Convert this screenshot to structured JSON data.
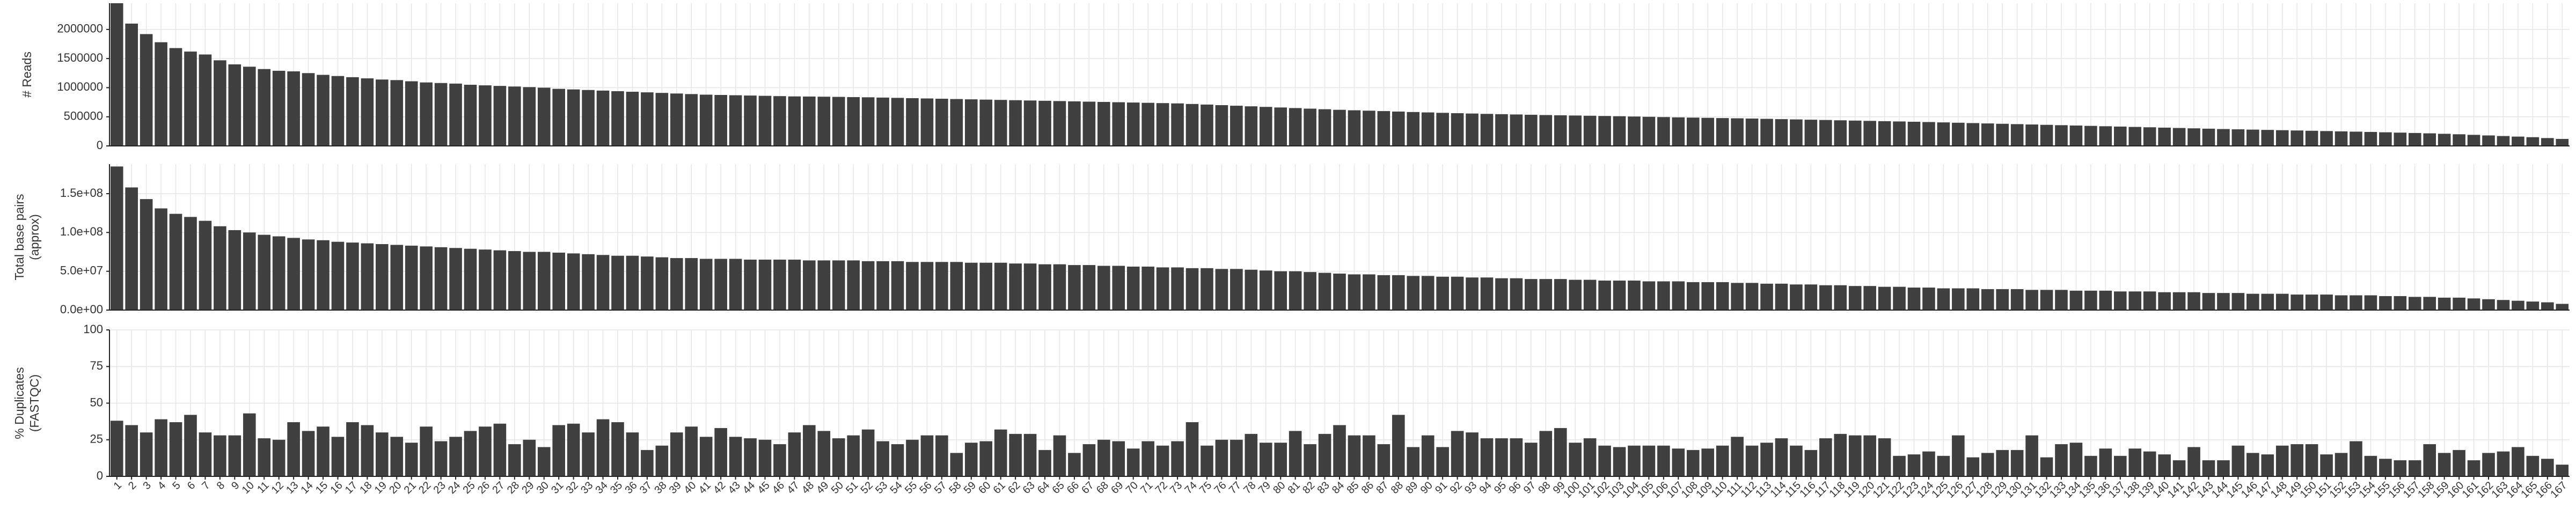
{
  "chart_data": [
    {
      "type": "bar",
      "y_label": [
        "# Reads"
      ],
      "color": "#404040",
      "grid": true,
      "ylim": [
        0,
        2450000
      ],
      "yticks": [
        0,
        500000,
        1000000,
        1500000,
        2000000
      ],
      "values": [
        2450000,
        2100000,
        1920000,
        1780000,
        1680000,
        1620000,
        1570000,
        1470000,
        1400000,
        1360000,
        1320000,
        1290000,
        1280000,
        1250000,
        1220000,
        1200000,
        1180000,
        1160000,
        1140000,
        1130000,
        1110000,
        1090000,
        1080000,
        1070000,
        1050000,
        1040000,
        1030000,
        1020000,
        1010000,
        1000000,
        980000,
        970000,
        960000,
        950000,
        940000,
        930000,
        920000,
        910000,
        900000,
        890000,
        880000,
        875000,
        870000,
        865000,
        860000,
        855000,
        850000,
        848000,
        845000,
        842000,
        838000,
        835000,
        830000,
        825000,
        820000,
        815000,
        810000,
        805000,
        800000,
        795000,
        790000,
        785000,
        780000,
        775000,
        770000,
        765000,
        760000,
        755000,
        750000,
        745000,
        740000,
        735000,
        730000,
        720000,
        710000,
        700000,
        690000,
        680000,
        670000,
        660000,
        650000,
        640000,
        630000,
        620000,
        612000,
        605000,
        598000,
        590000,
        582000,
        575000,
        568000,
        562000,
        556000,
        550000,
        545000,
        540000,
        535000,
        530000,
        526000,
        522000,
        518000,
        514000,
        510000,
        505000,
        500000,
        495000,
        490000,
        486000,
        482000,
        478000,
        474000,
        470000,
        465000,
        460000,
        455000,
        450000,
        445000,
        440000,
        435000,
        430000,
        425000,
        420000,
        415000,
        410000,
        404000,
        398000,
        392000,
        386000,
        380000,
        374000,
        368000,
        362000,
        356000,
        350000,
        344000,
        338000,
        332000,
        326000,
        320000,
        314000,
        308000,
        302000,
        296000,
        290000,
        285000,
        280000,
        275000,
        270000,
        265000,
        260000,
        255000,
        250000,
        245000,
        240000,
        234000,
        228000,
        222000,
        216000,
        208000,
        200000,
        190000,
        180000,
        170000,
        160000,
        150000,
        135000,
        120000
      ]
    },
    {
      "type": "bar",
      "y_label": [
        "Total base pairs",
        "(approx)"
      ],
      "color": "#404040",
      "grid": true,
      "ylim": [
        0,
        188000000
      ],
      "yticks": [
        {
          "value": 0,
          "label": "0.0e+00"
        },
        {
          "value": 50000000,
          "label": "5.0e+07"
        },
        {
          "value": 100000000,
          "label": "1.0e+08"
        },
        {
          "value": 150000000,
          "label": "1.5e+08"
        }
      ],
      "values": [
        185000000,
        158000000,
        143000000,
        131000000,
        124000000,
        120000000,
        115000000,
        108000000,
        103000000,
        100000000,
        97000000,
        95000000,
        93000000,
        91000000,
        90000000,
        88000000,
        87000000,
        86000000,
        85000000,
        84000000,
        83000000,
        82000000,
        81000000,
        80000000,
        79000000,
        78000000,
        77000000,
        76000000,
        75000000,
        75000000,
        74000000,
        73000000,
        72000000,
        71000000,
        70000000,
        70000000,
        69000000,
        68000000,
        67000000,
        67000000,
        66000000,
        66000000,
        66000000,
        65000000,
        65000000,
        65000000,
        65000000,
        64000000,
        64000000,
        64000000,
        64000000,
        63000000,
        63000000,
        63000000,
        62000000,
        62000000,
        62000000,
        62000000,
        61000000,
        61000000,
        61000000,
        60000000,
        60000000,
        59000000,
        59000000,
        58000000,
        58000000,
        57000000,
        57000000,
        56000000,
        56000000,
        55000000,
        55000000,
        54000000,
        54000000,
        53000000,
        53000000,
        52000000,
        51000000,
        50000000,
        50000000,
        49000000,
        48000000,
        47000000,
        46000000,
        46000000,
        45000000,
        45000000,
        44000000,
        44000000,
        43000000,
        43000000,
        42000000,
        42000000,
        41000000,
        41000000,
        40000000,
        40000000,
        40000000,
        39000000,
        39000000,
        38000000,
        38000000,
        38000000,
        37000000,
        37000000,
        37000000,
        36000000,
        36000000,
        36000000,
        35000000,
        35000000,
        34000000,
        34000000,
        33000000,
        33000000,
        32000000,
        32000000,
        31000000,
        31000000,
        30000000,
        30000000,
        29000000,
        29000000,
        28000000,
        28000000,
        28000000,
        27000000,
        27000000,
        27000000,
        26000000,
        26000000,
        26000000,
        25000000,
        25000000,
        25000000,
        24000000,
        24000000,
        24000000,
        23000000,
        23000000,
        23000000,
        22000000,
        22000000,
        22000000,
        21000000,
        21000000,
        21000000,
        20000000,
        20000000,
        20000000,
        19000000,
        19000000,
        19000000,
        18000000,
        18000000,
        17000000,
        17000000,
        16000000,
        16000000,
        15000000,
        14000000,
        13000000,
        12000000,
        11000000,
        10000000,
        8000000
      ]
    },
    {
      "type": "bar",
      "y_label": [
        "% Duplicates",
        "(FASTQC)"
      ],
      "color": "#404040",
      "grid": true,
      "ylim": [
        0,
        100
      ],
      "yticks": [
        0,
        25,
        50,
        75,
        100
      ],
      "categories": [
        "1",
        "2",
        "3",
        "4",
        "5",
        "6",
        "7",
        "8",
        "9",
        "10",
        "11",
        "12",
        "13",
        "14",
        "15",
        "16",
        "17",
        "18",
        "19",
        "20",
        "21",
        "22",
        "23",
        "24",
        "25",
        "26",
        "27",
        "28",
        "29",
        "30",
        "31",
        "32",
        "33",
        "34",
        "35",
        "36",
        "37",
        "38",
        "39",
        "40",
        "41",
        "42",
        "43",
        "44",
        "45",
        "46",
        "47",
        "48",
        "49",
        "50",
        "51",
        "52",
        "53",
        "54",
        "55",
        "56",
        "57",
        "58",
        "59",
        "60",
        "61",
        "62",
        "63",
        "64",
        "65",
        "66",
        "67",
        "68",
        "69",
        "70",
        "71",
        "72",
        "73",
        "74",
        "75",
        "76",
        "77",
        "78",
        "79",
        "80",
        "81",
        "82",
        "83",
        "84",
        "85",
        "86",
        "87",
        "88",
        "89",
        "90",
        "91",
        "92",
        "93",
        "94",
        "95",
        "96",
        "97",
        "98",
        "99",
        "100",
        "101",
        "102",
        "103",
        "104",
        "105",
        "106",
        "107",
        "108",
        "109",
        "110",
        "111",
        "112",
        "113",
        "114",
        "115",
        "116",
        "117",
        "118",
        "119",
        "120",
        "121",
        "122",
        "123",
        "124",
        "125",
        "126",
        "127",
        "128",
        "129",
        "130",
        "131",
        "132",
        "133",
        "134",
        "135",
        "136",
        "137",
        "138",
        "139",
        "140",
        "141",
        "142",
        "143",
        "144",
        "145",
        "146",
        "147",
        "148",
        "149",
        "150",
        "151",
        "152",
        "153",
        "154",
        "155",
        "156",
        "157",
        "158",
        "159",
        "160",
        "161",
        "162",
        "163",
        "164",
        "165",
        "166",
        "167"
      ],
      "values": [
        38,
        35,
        30,
        39,
        37,
        42,
        30,
        28,
        28,
        43,
        26,
        25,
        37,
        31,
        34,
        27,
        37,
        35,
        30,
        27,
        23,
        34,
        24,
        27,
        31,
        34,
        36,
        22,
        25,
        20,
        35,
        36,
        30,
        39,
        37,
        30,
        18,
        21,
        30,
        34,
        27,
        33,
        27,
        26,
        25,
        22,
        30,
        35,
        31,
        26,
        28,
        32,
        24,
        22,
        25,
        28,
        28,
        16,
        23,
        24,
        32,
        29,
        29,
        18,
        28,
        16,
        22,
        25,
        24,
        19,
        24,
        21,
        24,
        37,
        21,
        25,
        25,
        29,
        23,
        23,
        31,
        22,
        29,
        35,
        28,
        28,
        22,
        42,
        20,
        28,
        20,
        31,
        30,
        26,
        26,
        26,
        23,
        31,
        33,
        23,
        26,
        21,
        20,
        21,
        21,
        21,
        19,
        18,
        19,
        21,
        27,
        21,
        23,
        26,
        21,
        18,
        26,
        29,
        28,
        28,
        26,
        14,
        15,
        17,
        14,
        28,
        13,
        16,
        18,
        18,
        28,
        13,
        22,
        23,
        14,
        19,
        14,
        19,
        17,
        15,
        11,
        20,
        11,
        11,
        21,
        16,
        15,
        21,
        22,
        22,
        15,
        16,
        24,
        14,
        12,
        11,
        11,
        22,
        16,
        18,
        11,
        16,
        17,
        20,
        14,
        12,
        8
      ]
    }
  ]
}
